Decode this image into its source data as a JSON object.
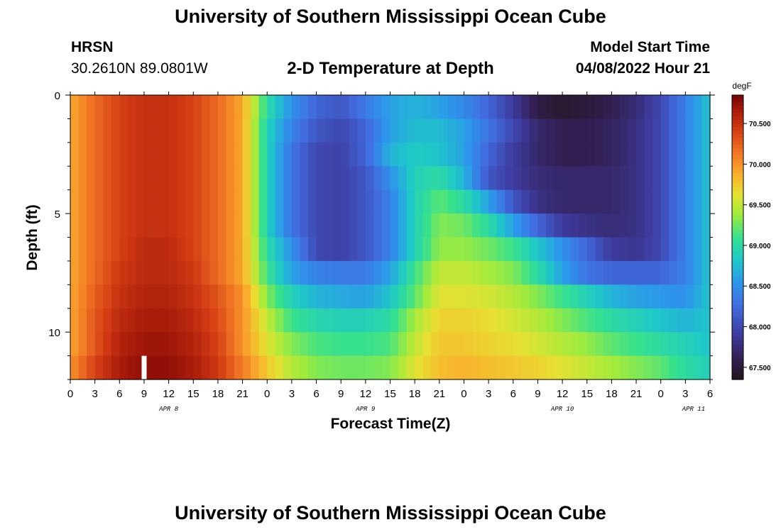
{
  "header": {
    "main_title": "University of Southern Mississippi Ocean Cube",
    "station_name": "HRSN",
    "station_coords": "30.2610N  89.0801W",
    "subtitle": "2-D Temperature at Depth",
    "model_start_label": "Model Start Time",
    "model_start_value": "04/08/2022 Hour 21"
  },
  "footer": {
    "repeat_title": "University of Southern Mississippi Ocean Cube"
  },
  "chart_data": {
    "type": "heatmap",
    "title": "2-D Temperature at Depth",
    "xlabel": "Forecast Time(Z)",
    "ylabel": "Depth (ft)",
    "x_unit": "hours since 04/08/2022 00Z",
    "xlim": [
      0,
      78
    ],
    "ylim": [
      0,
      12
    ],
    "x_ticks": [
      0,
      3,
      6,
      9,
      12,
      15,
      18,
      21,
      24,
      27,
      30,
      33,
      36,
      39,
      42,
      45,
      48,
      51,
      54,
      57,
      60,
      63,
      66,
      69,
      72,
      75,
      78
    ],
    "x_tick_labels": [
      "0",
      "3",
      "6",
      "9",
      "12",
      "15",
      "18",
      "21",
      "0",
      "3",
      "6",
      "9",
      "12",
      "15",
      "18",
      "21",
      "0",
      "3",
      "6",
      "9",
      "12",
      "15",
      "18",
      "21",
      "0",
      "3",
      "6"
    ],
    "y_ticks": [
      0,
      5,
      10
    ],
    "y_tick_labels": [
      "0",
      "5",
      "10"
    ],
    "date_labels": [
      {
        "text": "APR 8",
        "x": 12
      },
      {
        "text": "APR 9",
        "x": 36
      },
      {
        "text": "APR 10",
        "x": 60
      },
      {
        "text": "APR 11",
        "x": 76
      }
    ],
    "colorbar": {
      "unit": "degF",
      "ticks": [
        67.5,
        68.0,
        68.5,
        69.0,
        69.5,
        70.0,
        70.5
      ],
      "tick_labels": [
        "67.500",
        "68.000",
        "68.500",
        "69.000",
        "69.500",
        "70.000",
        "70.500"
      ],
      "range": [
        67.35,
        70.85
      ]
    },
    "depths_ft": [
      0.5,
      1.5,
      2.5,
      3.5,
      4.5,
      5.5,
      6.5,
      7.5,
      8.5,
      9.5,
      10.5,
      11.5
    ],
    "time_keys_hr": [
      0,
      3,
      6,
      9,
      12,
      15,
      18,
      21,
      24,
      27,
      30,
      33,
      36,
      39,
      42,
      45,
      48,
      51,
      54,
      57,
      60,
      63,
      66,
      69,
      72,
      75,
      78
    ],
    "values_degF": [
      [
        69.9,
        70.2,
        70.4,
        70.5,
        70.5,
        70.4,
        70.2,
        69.9,
        69.0,
        68.5,
        68.2,
        68.1,
        68.35,
        68.6,
        68.7,
        68.6,
        68.45,
        68.2,
        67.9,
        67.55,
        67.45,
        67.5,
        67.6,
        67.75,
        68.0,
        68.4,
        68.8
      ],
      [
        69.9,
        70.2,
        70.4,
        70.5,
        70.5,
        70.4,
        70.2,
        69.9,
        68.9,
        68.4,
        68.1,
        68.0,
        68.2,
        68.6,
        68.75,
        68.75,
        68.6,
        68.3,
        68.0,
        67.7,
        67.6,
        67.6,
        67.65,
        67.8,
        68.0,
        68.4,
        68.8
      ],
      [
        69.9,
        70.2,
        70.4,
        70.5,
        70.5,
        70.4,
        70.2,
        69.9,
        68.9,
        68.3,
        68.0,
        67.95,
        68.2,
        68.7,
        68.85,
        68.8,
        68.6,
        68.2,
        67.9,
        67.7,
        67.6,
        67.6,
        67.65,
        67.8,
        68.0,
        68.4,
        68.8
      ],
      [
        69.9,
        70.2,
        70.4,
        70.5,
        70.5,
        70.4,
        70.2,
        69.9,
        68.9,
        68.3,
        68.0,
        67.95,
        68.1,
        68.5,
        68.9,
        69.0,
        68.7,
        68.1,
        67.9,
        67.75,
        67.7,
        67.7,
        67.7,
        67.8,
        68.0,
        68.4,
        68.8
      ],
      [
        69.9,
        70.2,
        70.4,
        70.5,
        70.5,
        70.4,
        70.2,
        69.9,
        68.9,
        68.3,
        68.0,
        67.95,
        68.1,
        68.4,
        68.9,
        69.2,
        69.0,
        68.6,
        68.1,
        67.8,
        67.7,
        67.7,
        67.7,
        67.8,
        68.0,
        68.4,
        68.8
      ],
      [
        69.9,
        70.2,
        70.4,
        70.5,
        70.5,
        70.4,
        70.2,
        69.9,
        68.9,
        68.3,
        68.0,
        67.95,
        68.1,
        68.4,
        68.9,
        69.3,
        69.25,
        69.0,
        68.6,
        68.2,
        67.9,
        67.8,
        67.75,
        67.8,
        68.0,
        68.4,
        68.8
      ],
      [
        69.9,
        70.2,
        70.4,
        70.55,
        70.55,
        70.4,
        70.2,
        69.9,
        69.0,
        68.5,
        68.0,
        67.95,
        68.1,
        68.4,
        68.9,
        69.35,
        69.35,
        69.25,
        69.1,
        68.8,
        68.5,
        68.2,
        67.9,
        67.85,
        68.0,
        68.4,
        68.8
      ],
      [
        69.9,
        70.2,
        70.45,
        70.55,
        70.55,
        70.45,
        70.2,
        69.9,
        69.1,
        68.6,
        68.4,
        68.35,
        68.35,
        68.6,
        69.1,
        69.5,
        69.5,
        69.4,
        69.3,
        69.0,
        68.6,
        68.3,
        68.2,
        68.2,
        68.2,
        68.4,
        68.8
      ],
      [
        69.9,
        70.25,
        70.5,
        70.6,
        70.6,
        70.5,
        70.3,
        70.0,
        69.3,
        68.9,
        68.7,
        68.65,
        68.6,
        68.8,
        69.2,
        69.6,
        69.6,
        69.55,
        69.45,
        69.3,
        69.1,
        68.9,
        68.7,
        68.6,
        68.55,
        68.5,
        68.8
      ],
      [
        69.9,
        70.3,
        70.55,
        70.65,
        70.65,
        70.55,
        70.35,
        70.0,
        69.5,
        69.1,
        68.95,
        68.9,
        68.9,
        69.0,
        69.4,
        69.7,
        69.7,
        69.65,
        69.55,
        69.45,
        69.3,
        69.15,
        69.0,
        68.9,
        68.8,
        68.7,
        68.8
      ],
      [
        69.9,
        70.3,
        70.6,
        70.7,
        70.7,
        70.6,
        70.4,
        70.0,
        69.6,
        69.3,
        69.15,
        69.1,
        69.1,
        69.15,
        69.5,
        69.75,
        69.75,
        69.7,
        69.65,
        69.55,
        69.45,
        69.35,
        69.2,
        69.1,
        69.0,
        68.9,
        68.8
      ],
      [
        70.0,
        70.4,
        70.65,
        70.75,
        70.75,
        70.65,
        70.45,
        70.1,
        69.75,
        69.45,
        69.3,
        69.25,
        69.25,
        69.3,
        69.6,
        69.8,
        69.85,
        69.8,
        69.75,
        69.7,
        69.6,
        69.5,
        69.4,
        69.3,
        69.2,
        69.0,
        68.9
      ]
    ],
    "missing_marker": {
      "x": 8.7,
      "depth": 11.5
    }
  }
}
